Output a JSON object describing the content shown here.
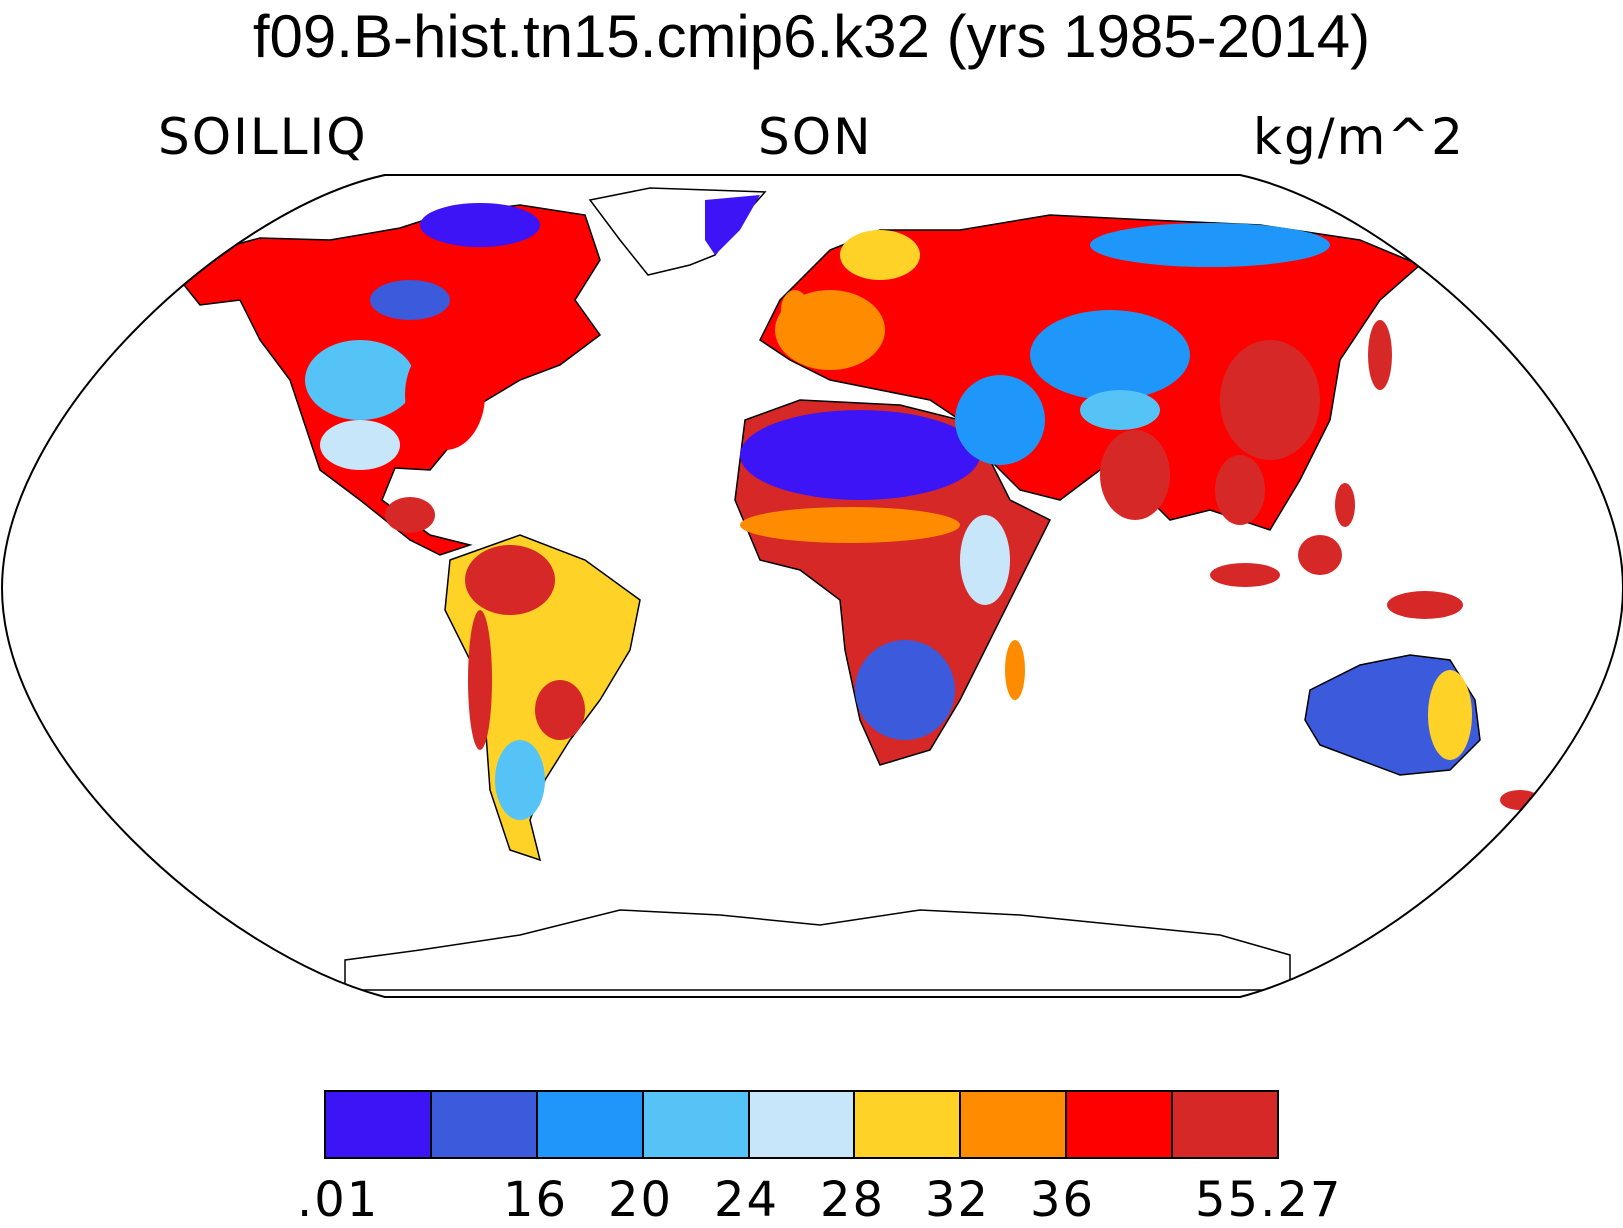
{
  "title": "f09.B-hist.tn15.cmip6.k32 (yrs 1985-2014)",
  "left_label": "SOILLIQ",
  "center_label": "SON",
  "right_label": "kg/m^2",
  "colorbar": {
    "colors": [
      "#3c14f5",
      "#3c5adc",
      "#1e96fa",
      "#55c3f5",
      "#c8e6fa",
      "#ffd228",
      "#ff8c00",
      "#ff0000",
      "#d72828"
    ],
    "tick_labels": [
      ".01",
      "16",
      "20",
      "24",
      "28",
      "32",
      "36",
      "55.27"
    ]
  },
  "map": {
    "projection": "Robinson",
    "ocean_color": "#ffffff",
    "region_levels": {
      "greenland_edge": 0,
      "canadian_arctic": 0,
      "alaska": 7,
      "western_canada": 7,
      "eastern_canada": 7,
      "great_plains": 3,
      "eastern_us": 7,
      "mexico": 4,
      "central_america": 8,
      "amazon": 8,
      "brazil_east": 5,
      "andes": 8,
      "patagonia": 3,
      "sahara": 0,
      "sahel": 6,
      "central_africa": 8,
      "east_africa": 4,
      "southern_africa": 1,
      "madagascar": 6,
      "europe": 6,
      "scandinavia": 5,
      "siberia": 7,
      "middle_east": 2,
      "central_asia": 2,
      "tibet": 3,
      "india": 8,
      "china_east": 8,
      "southeast_asia": 8,
      "japan": 8,
      "indonesia": 8,
      "australia_interior": 1,
      "australia_east": 5,
      "new_zealand": 8
    }
  }
}
